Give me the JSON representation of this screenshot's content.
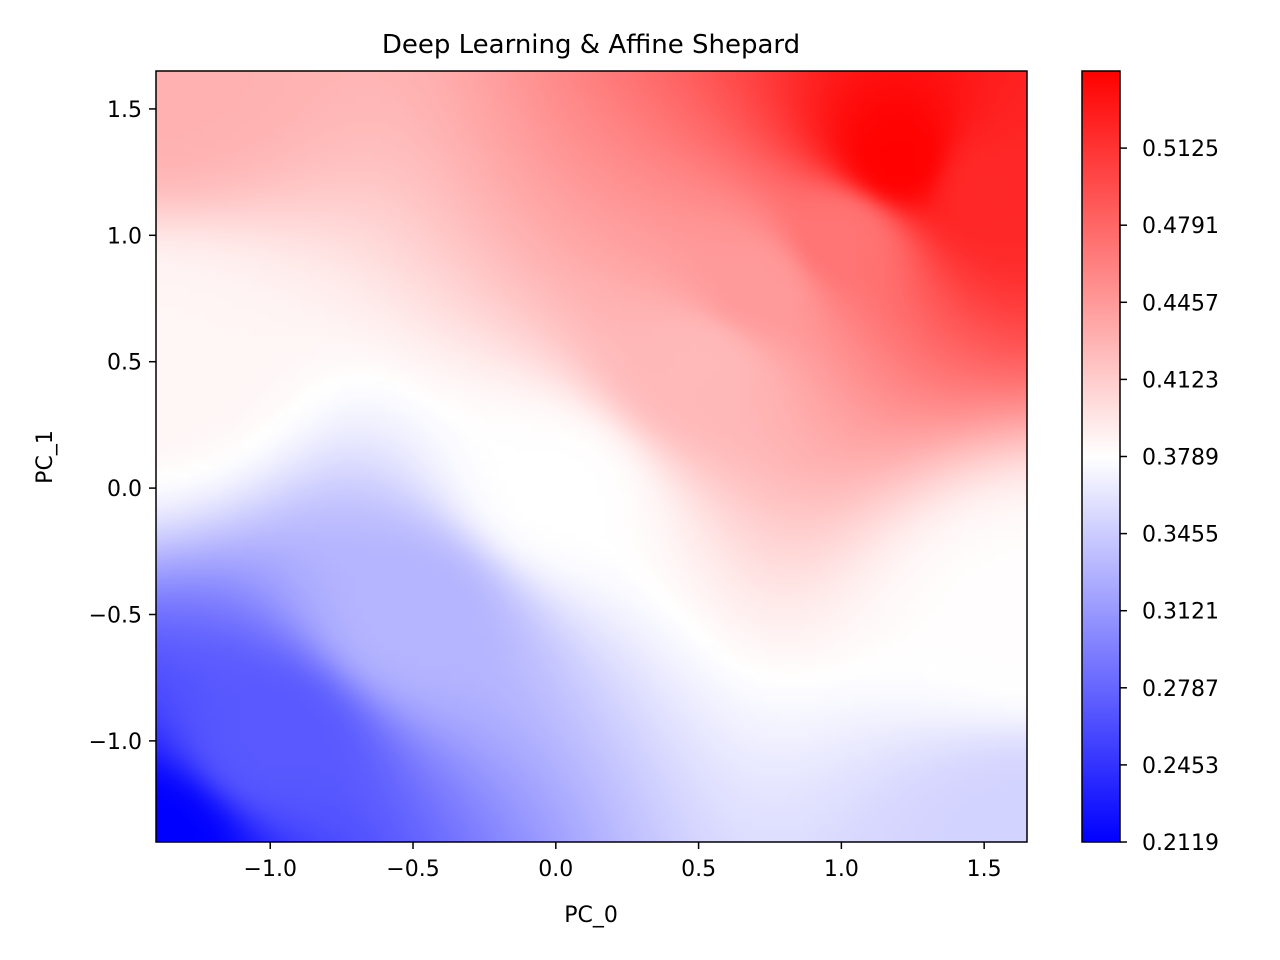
{
  "chart_data": {
    "type": "heatmap",
    "title": "Deep Learning & Affine Shepard",
    "xlabel": "PC_0",
    "ylabel": "PC_1",
    "xlim": [
      -1.4,
      1.65
    ],
    "ylim": [
      -1.4,
      1.65
    ],
    "x_ticks": [
      -1.0,
      -0.5,
      0.0,
      0.5,
      1.0,
      1.5
    ],
    "x_tick_labels": [
      "−1.0",
      "−0.5",
      "0.0",
      "0.5",
      "1.0",
      "1.5"
    ],
    "y_ticks": [
      -1.0,
      -0.5,
      0.0,
      0.5,
      1.0,
      1.5
    ],
    "y_tick_labels": [
      "−1.0",
      "−0.5",
      "0.0",
      "0.5",
      "1.0",
      "1.5"
    ],
    "colormap": "bwr",
    "colormap_colors": {
      "low": "#0000ff",
      "mid": "#ffffff",
      "high": "#ff0000"
    },
    "color_range": [
      0.2119,
      0.5459
    ],
    "colorbar_ticks": [
      0.2119,
      0.2453,
      0.2787,
      0.3121,
      0.3455,
      0.3789,
      0.4123,
      0.4457,
      0.4791,
      0.5125
    ],
    "colorbar_tick_labels": [
      "0.2119",
      "0.2453",
      "0.2787",
      "0.3121",
      "0.3455",
      "0.3789",
      "0.4123",
      "0.4457",
      "0.4791",
      "0.5125"
    ],
    "grid": false,
    "field_samples": [
      {
        "x": -1.4,
        "y": -1.4,
        "value": 0.2119
      },
      {
        "x": -1.0,
        "y": -1.0,
        "value": 0.27
      },
      {
        "x": -0.5,
        "y": -0.5,
        "value": 0.33
      },
      {
        "x": 0.0,
        "y": 0.0,
        "value": 0.379
      },
      {
        "x": 0.5,
        "y": 0.5,
        "value": 0.425
      },
      {
        "x": 0.7,
        "y": 0.8,
        "value": 0.445
      },
      {
        "x": 1.0,
        "y": 1.0,
        "value": 0.47
      },
      {
        "x": 1.2,
        "y": 1.3,
        "value": 0.545
      },
      {
        "x": 1.5,
        "y": 1.2,
        "value": 0.52
      },
      {
        "x": 1.65,
        "y": -1.4,
        "value": 0.35
      },
      {
        "x": -1.4,
        "y": 1.65,
        "value": 0.43
      },
      {
        "x": -1.4,
        "y": 0.5,
        "value": 0.385
      },
      {
        "x": 1.65,
        "y": -0.5,
        "value": 0.38
      }
    ]
  }
}
